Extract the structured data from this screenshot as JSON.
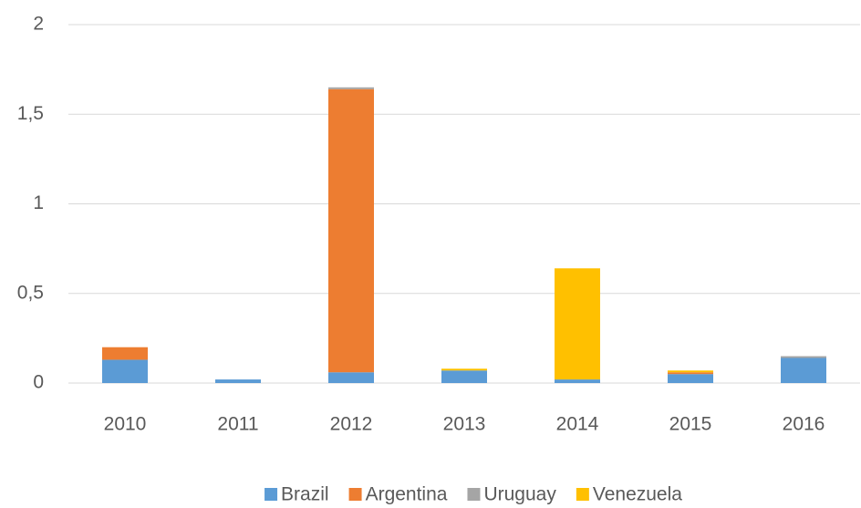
{
  "chart_data": {
    "type": "stacked_bar",
    "categories": [
      "2010",
      "2011",
      "2012",
      "2013",
      "2014",
      "2015",
      "2016"
    ],
    "series": [
      {
        "name": "Brazil",
        "color": "#5b9bd5",
        "values": [
          0.13,
          0.02,
          0.06,
          0.07,
          0.02,
          0.05,
          0.14
        ]
      },
      {
        "name": "Argentina",
        "color": "#ed7d31",
        "values": [
          0.07,
          0,
          1.58,
          0,
          0,
          0.01,
          0
        ]
      },
      {
        "name": "Uruguay",
        "color": "#a5a5a5",
        "values": [
          0,
          0,
          0.01,
          0,
          0,
          0,
          0.01
        ]
      },
      {
        "name": "Venezuela",
        "color": "#ffc000",
        "values": [
          0,
          0,
          0,
          0.01,
          0.62,
          0.01,
          0
        ]
      }
    ],
    "ylim": [
      0,
      2
    ],
    "yticks": [
      0,
      {
        "value": 0.5,
        "label": "0,5"
      },
      1,
      {
        "value": 1.5,
        "label": "1,5"
      },
      2
    ],
    "grid": true,
    "legend": "bottom"
  }
}
